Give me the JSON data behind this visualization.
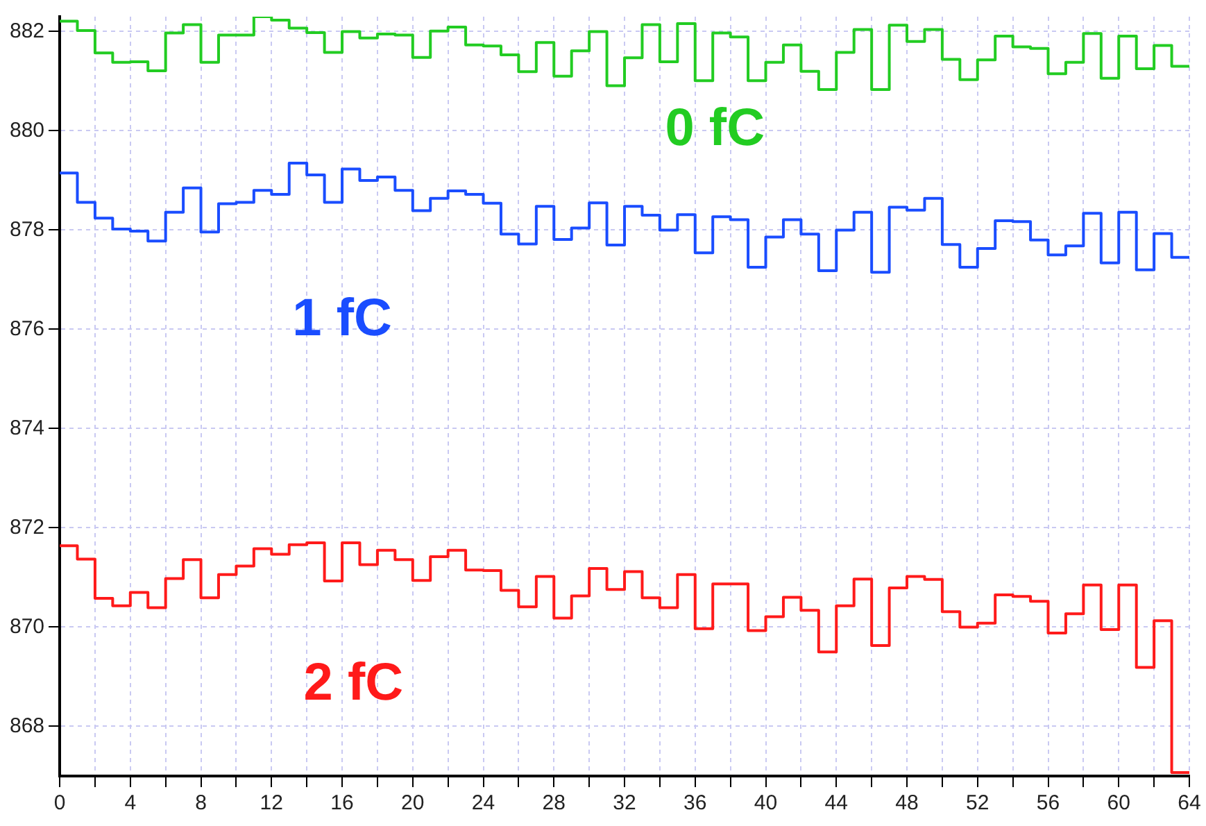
{
  "chart_data": {
    "type": "step",
    "x": [
      0,
      1,
      2,
      3,
      4,
      5,
      6,
      7,
      8,
      9,
      10,
      11,
      12,
      13,
      14,
      15,
      16,
      17,
      18,
      19,
      20,
      21,
      22,
      23,
      24,
      25,
      26,
      27,
      28,
      29,
      30,
      31,
      32,
      33,
      34,
      35,
      36,
      37,
      38,
      39,
      40,
      41,
      42,
      43,
      44,
      45,
      46,
      47,
      48,
      49,
      50,
      51,
      52,
      53,
      54,
      55,
      56,
      57,
      58,
      59,
      60,
      61,
      62,
      63,
      64
    ],
    "series": [
      {
        "name": "0 fC",
        "color": "#22cc22",
        "values": [
          882.21,
          882.02,
          881.57,
          881.38,
          881.39,
          881.21,
          881.97,
          882.14,
          881.38,
          881.93,
          881.93,
          882.3,
          882.23,
          882.07,
          881.98,
          881.58,
          882.0,
          881.87,
          881.95,
          881.93,
          881.48,
          882.01,
          882.09,
          881.73,
          881.71,
          881.53,
          881.19,
          881.78,
          881.1,
          881.61,
          882.0,
          880.91,
          881.47,
          882.14,
          881.39,
          882.16,
          881.01,
          881.97,
          881.89,
          881.01,
          881.38,
          881.73,
          881.2,
          880.83,
          881.58,
          882.04,
          880.83,
          882.13,
          881.8,
          882.04,
          881.44,
          881.03,
          881.43,
          881.91,
          881.69,
          881.66,
          881.15,
          881.38,
          881.96,
          881.06,
          881.91,
          881.25,
          881.72,
          881.3,
          881.3
        ]
      },
      {
        "name": "1 fC",
        "color": "#1a4dff",
        "values": [
          879.15,
          878.56,
          878.24,
          878.02,
          877.98,
          877.78,
          878.36,
          878.85,
          877.96,
          878.53,
          878.56,
          878.8,
          878.72,
          879.35,
          879.11,
          878.56,
          879.23,
          879.0,
          879.07,
          878.8,
          878.39,
          878.64,
          878.79,
          878.72,
          878.54,
          877.92,
          877.72,
          878.48,
          877.81,
          878.04,
          878.55,
          877.7,
          878.48,
          878.3,
          878.0,
          878.31,
          877.54,
          878.27,
          878.21,
          877.25,
          877.86,
          878.21,
          877.92,
          877.18,
          878.0,
          878.36,
          877.15,
          878.46,
          878.4,
          878.64,
          877.71,
          877.25,
          877.63,
          878.19,
          878.17,
          877.8,
          877.5,
          877.68,
          878.34,
          877.34,
          878.36,
          877.2,
          877.93,
          877.45,
          877.45
        ]
      },
      {
        "name": "2 fC",
        "color": "#ff1a1a",
        "values": [
          871.64,
          871.37,
          870.58,
          870.43,
          870.7,
          870.39,
          870.98,
          871.36,
          870.59,
          871.06,
          871.23,
          871.58,
          871.47,
          871.66,
          871.7,
          870.93,
          871.7,
          871.26,
          871.55,
          871.36,
          870.94,
          871.42,
          871.55,
          871.15,
          871.14,
          870.74,
          870.41,
          871.02,
          870.18,
          870.63,
          871.18,
          870.76,
          871.12,
          870.59,
          870.39,
          871.06,
          869.97,
          870.87,
          870.87,
          869.93,
          870.21,
          870.6,
          870.34,
          869.5,
          870.43,
          870.97,
          869.63,
          870.79,
          871.02,
          870.96,
          870.31,
          870.0,
          870.08,
          870.65,
          870.62,
          870.52,
          869.88,
          870.27,
          870.85,
          869.95,
          870.85,
          869.19,
          870.13,
          867.07,
          867.07
        ]
      }
    ],
    "xlim": [
      0,
      64
    ],
    "xticks": [
      0,
      {
        "value": 2,
        "label": null
      },
      4,
      {
        "value": 6,
        "label": null
      },
      8,
      {
        "value": 10,
        "label": null
      },
      12,
      {
        "value": 14,
        "label": null
      },
      16,
      {
        "value": 18,
        "label": null
      },
      20,
      {
        "value": 22,
        "label": null
      },
      24,
      {
        "value": 26,
        "label": null
      },
      28,
      {
        "value": 30,
        "label": null
      },
      32,
      {
        "value": 34,
        "label": null
      },
      36,
      {
        "value": 38,
        "label": null
      },
      40,
      {
        "value": 42,
        "label": null
      },
      44,
      {
        "value": 46,
        "label": null
      },
      48,
      {
        "value": 50,
        "label": null
      },
      52,
      {
        "value": 54,
        "label": null
      },
      56,
      {
        "value": 58,
        "label": null
      },
      60,
      {
        "value": 62,
        "label": null
      },
      64
    ],
    "ylim": [
      867,
      882.3
    ],
    "yticks": [
      868,
      870,
      872,
      874,
      876,
      878,
      880,
      882
    ],
    "grid": true,
    "legend": false
  }
}
